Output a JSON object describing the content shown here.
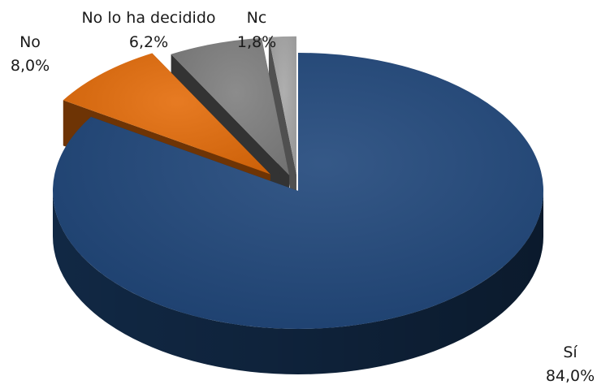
{
  "chart_data": {
    "type": "pie",
    "style": "3d-exploded",
    "legend": "none",
    "slices": [
      {
        "name": "Sí",
        "value": 84.0,
        "label": "84,0%",
        "color": "#1f467a",
        "dark": "#112844"
      },
      {
        "name": "No",
        "value": 8.0,
        "label": "8,0%",
        "color": "#e46c0a",
        "dark": "#6e3405"
      },
      {
        "name": "No lo ha decidido",
        "value": 6.2,
        "label": "6,2%",
        "color": "#7f7f7f",
        "dark": "#333333"
      },
      {
        "name": "Nc",
        "value": 1.8,
        "label": "1,8%",
        "color": "#a6a6a6",
        "dark": "#505050"
      }
    ]
  }
}
